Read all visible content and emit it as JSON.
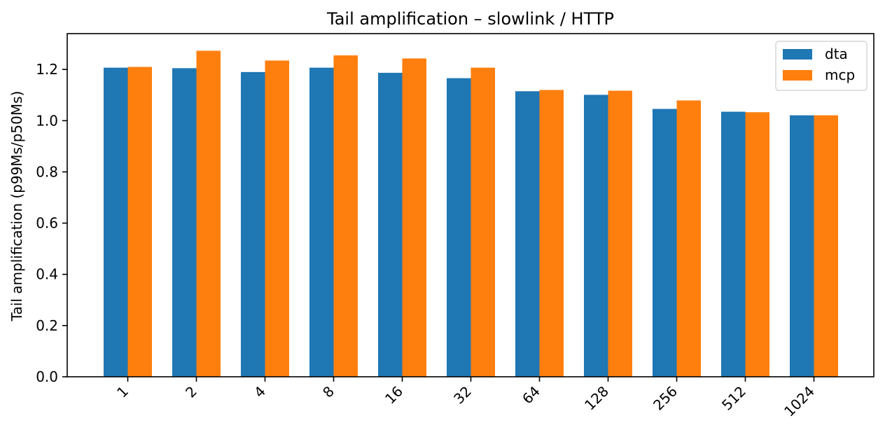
{
  "chart_data": {
    "type": "bar",
    "title": "Tail amplification – slowlink / HTTP",
    "xlabel": "",
    "ylabel": "Tail amplification (p99Ms/p50Ms)",
    "categories": [
      "1",
      "2",
      "4",
      "8",
      "16",
      "32",
      "64",
      "128",
      "256",
      "512",
      "1024"
    ],
    "series": [
      {
        "name": "dta",
        "color": "#1f77b4",
        "values": [
          1.207,
          1.205,
          1.19,
          1.207,
          1.187,
          1.166,
          1.115,
          1.101,
          1.046,
          1.035,
          1.021
        ]
      },
      {
        "name": "mcp",
        "color": "#ff7f0e",
        "values": [
          1.21,
          1.273,
          1.235,
          1.255,
          1.243,
          1.207,
          1.12,
          1.117,
          1.079,
          1.033,
          1.021
        ]
      }
    ],
    "ylim": [
      0,
      1.34
    ],
    "yticks": [
      "0.0",
      "0.2",
      "0.4",
      "0.6",
      "0.8",
      "1.0",
      "1.2"
    ],
    "grid": false,
    "legend": "top-right"
  }
}
